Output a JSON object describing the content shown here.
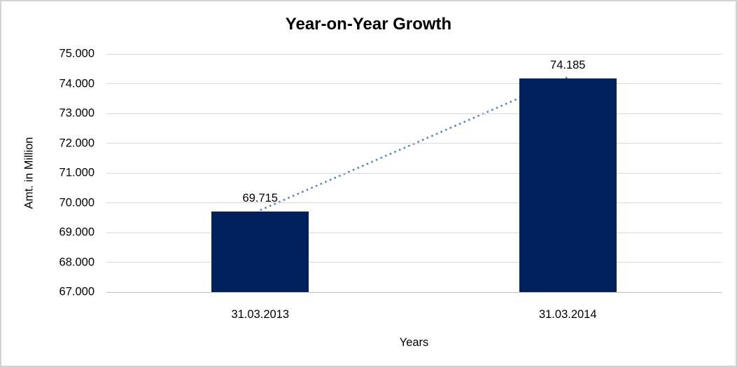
{
  "chart": {
    "title": "Year-on-Year Growth",
    "y_axis_title": "Amt. in Million",
    "x_axis_title": "Years"
  },
  "chart_data": {
    "type": "bar",
    "title": "Year-on-Year Growth",
    "xlabel": "Years",
    "ylabel": "Amt. in Million",
    "categories": [
      "31.03.2013",
      "31.03.2014"
    ],
    "values": [
      69.715,
      74.185
    ],
    "data_labels": [
      "69.715",
      "74.185"
    ],
    "ylim": [
      67,
      75
    ],
    "ytick_step": 1,
    "ytick_labels": [
      "67.000",
      "68.000",
      "69.000",
      "70.000",
      "71.000",
      "72.000",
      "73.000",
      "74.000",
      "75.000"
    ],
    "grid": true,
    "legend": false,
    "bar_width_fraction": 0.158,
    "trendline": {
      "style": "dotted",
      "from_index": 0,
      "to_index": 1
    },
    "colors": {
      "bar": "#02215e",
      "trendline": "#4c86c9",
      "gridline": "#d9d9d9",
      "axis_line": "#bfbfbf",
      "canvas_border": "#d3d3d3",
      "text": "#000000"
    }
  }
}
